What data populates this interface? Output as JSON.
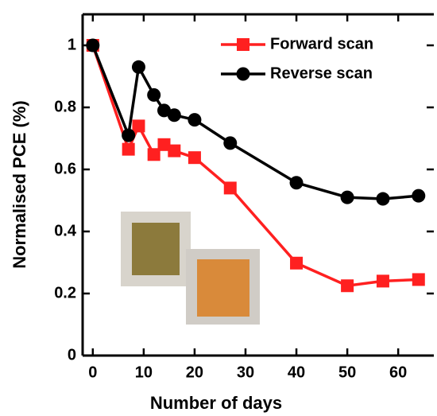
{
  "chart_data": {
    "type": "line",
    "xlabel": "Number of days",
    "ylabel": "Normalised PCE (%)",
    "xlim": [
      -2,
      67
    ],
    "ylim": [
      0,
      1.1
    ],
    "xticks": [
      0,
      10,
      20,
      30,
      40,
      50,
      60
    ],
    "yticks": [
      0,
      0.2,
      0.4,
      0.6,
      0.8,
      1
    ],
    "legend": "upper right",
    "series": [
      {
        "name": "Forward scan",
        "color": "#ff2020",
        "marker": "square",
        "x": [
          0,
          7,
          9,
          12,
          14,
          16,
          20,
          27,
          40,
          50,
          57,
          64
        ],
        "values": [
          1,
          0.665,
          0.74,
          0.648,
          0.68,
          0.66,
          0.638,
          0.54,
          0.298,
          0.225,
          0.24,
          0.245
        ]
      },
      {
        "name": "Reverse scan",
        "color": "#000000",
        "marker": "circle",
        "x": [
          0,
          7,
          9,
          12,
          14,
          16,
          20,
          27,
          40,
          50,
          57,
          64
        ],
        "values": [
          1,
          0.71,
          0.93,
          0.84,
          0.79,
          0.775,
          0.76,
          0.685,
          0.557,
          0.51,
          0.505,
          0.515
        ]
      }
    ]
  }
}
